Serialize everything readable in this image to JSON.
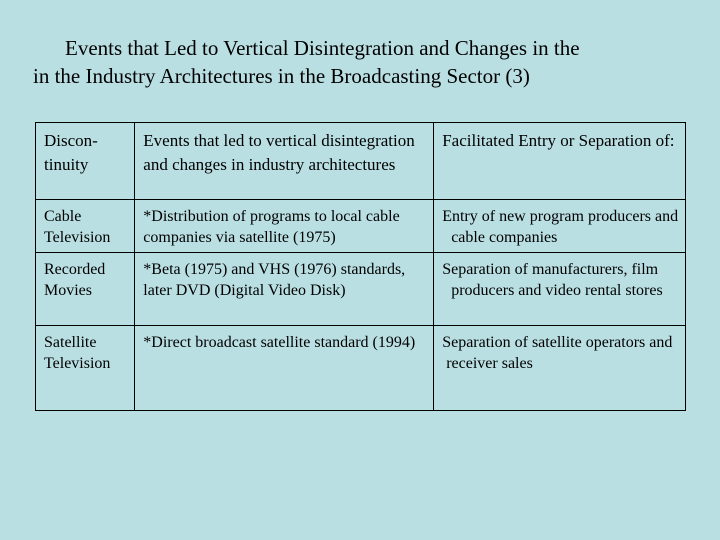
{
  "title": {
    "line1": "Events that Led to Vertical Disintegration and Changes in the",
    "line2": "in the Industry Architectures in the Broadcasting Sector (3)"
  },
  "table": {
    "headers": [
      "Discon-tinuity",
      "Events that led to vertical disintegration and changes in industry architectures",
      "Facilitated Entry or Separation of:"
    ],
    "rows": [
      {
        "discontinuity": "Cable Television",
        "events": "*Distribution of programs to local cable companies via satellite (1975)",
        "entry": "Entry of new program producers and cable companies"
      },
      {
        "discontinuity": "Recorded Movies",
        "events": "*Beta (1975) and VHS (1976) standards, later DVD (Digital Video Disk)",
        "entry": "Separation of manufacturers, film producers and video rental stores"
      },
      {
        "discontinuity": "Satellite Television",
        "events": "*Direct broadcast satellite standard (1994)",
        "entry": "Separation of satellite operators and receiver sales"
      }
    ]
  }
}
